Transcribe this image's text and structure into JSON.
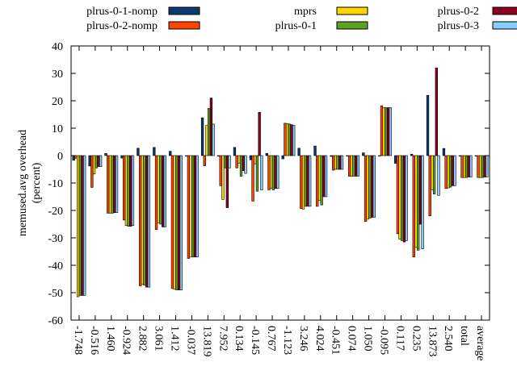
{
  "chart_data": {
    "type": "bar",
    "title": "",
    "xlabel": "",
    "ylabel": "memused.avg overhead\n(percent)",
    "ylim": [
      -60,
      40
    ],
    "yticks": [
      -60,
      -50,
      -40,
      -30,
      -20,
      -10,
      0,
      10,
      20,
      30,
      40
    ],
    "grid": false,
    "legend_position": "top",
    "categories": [
      "-1.748",
      "-0.516",
      "1.460",
      "-0.924",
      "2.882",
      "3.061",
      "1.412",
      "-0.037",
      "13.819",
      "7.952",
      "0.134",
      "-0.145",
      "0.767",
      "-1.123",
      "3.246",
      "4.024",
      "-0.451",
      "0.074",
      "1.050",
      "-0.095",
      "0.117",
      "0.235",
      "13.873",
      "2.540",
      "total",
      "average"
    ],
    "series": [
      {
        "name": "plrus-0-1-nomp",
        "color": "#0b3b6e",
        "values": [
          -1.7,
          -3.8,
          0.8,
          -0.9,
          2.7,
          3.0,
          1.6,
          0.0,
          13.8,
          -0.2,
          3.0,
          -1.5,
          0.8,
          -1.2,
          2.7,
          3.5,
          -0.3,
          0.0,
          1.0,
          -0.1,
          -2.8,
          0.5,
          22.0,
          2.6,
          0.0,
          0.0
        ]
      },
      {
        "name": "plrus-0-2-nomp",
        "color": "#ff4500",
        "values": [
          -1.0,
          -11.6,
          -21.0,
          -23.5,
          -47.5,
          -27.0,
          -48.5,
          -37.5,
          -3.7,
          -11.0,
          -4.5,
          -16.6,
          -12.5,
          11.8,
          -19.3,
          -18.5,
          -5.3,
          -7.5,
          -24.0,
          18.2,
          -28.5,
          -37.0,
          -22.0,
          -12.0,
          -8.0,
          -8.0
        ]
      },
      {
        "name": "mprs",
        "color": "#ffd700",
        "values": [
          -51.5,
          -6.7,
          -21.0,
          -25.5,
          -47.0,
          -24.5,
          -48.8,
          -37.0,
          11.0,
          -16.0,
          -2.8,
          -3.0,
          -12.0,
          11.7,
          -19.5,
          -16.3,
          -5.0,
          -7.5,
          -23.2,
          17.5,
          -30.5,
          -33.5,
          -12.5,
          -11.8,
          -8.0,
          -8.0
        ]
      },
      {
        "name": "plrus-0-1",
        "color": "#5aa31e",
        "values": [
          -51.0,
          -4.5,
          -21.0,
          -25.8,
          -47.3,
          -25.0,
          -49.0,
          -37.0,
          17.2,
          -4.5,
          -7.5,
          -13.0,
          -12.5,
          11.5,
          -18.5,
          -18.0,
          -5.0,
          -7.5,
          -22.8,
          17.5,
          -31.0,
          -34.5,
          -14.0,
          -11.5,
          -8.0,
          -8.0
        ]
      },
      {
        "name": "plrus-0-2",
        "color": "#8b0020",
        "values": [
          -51.0,
          -4.0,
          -20.8,
          -25.8,
          -48.0,
          -26.0,
          -49.0,
          -37.0,
          21.0,
          -19.0,
          -5.5,
          15.8,
          -12.0,
          11.3,
          -18.5,
          -15.0,
          -5.0,
          -7.5,
          -22.5,
          17.5,
          -31.5,
          -25.0,
          32.0,
          -11.0,
          -7.8,
          -7.8
        ]
      },
      {
        "name": "plrus-0-3",
        "color": "#87ceff",
        "values": [
          -51.0,
          -4.0,
          -20.8,
          -25.5,
          -48.0,
          -26.0,
          -49.0,
          -37.0,
          11.5,
          -4.5,
          -6.5,
          -12.5,
          -12.0,
          11.0,
          -18.5,
          -15.0,
          -5.0,
          -7.5,
          -22.5,
          17.5,
          -31.0,
          -34.0,
          -14.5,
          -11.0,
          -7.8,
          -7.8
        ]
      }
    ]
  }
}
